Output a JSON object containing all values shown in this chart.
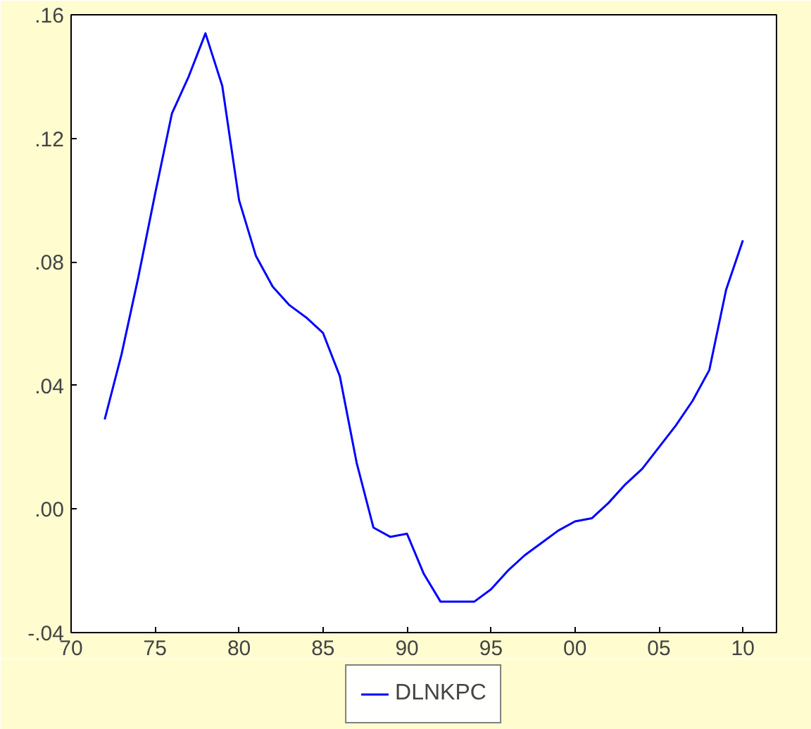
{
  "chart_data": {
    "type": "line",
    "x": [
      1972,
      1973,
      1974,
      1975,
      1976,
      1977,
      1978,
      1979,
      1980,
      1981,
      1982,
      1983,
      1984,
      1985,
      1986,
      1987,
      1988,
      1989,
      1990,
      1991,
      1992,
      1993,
      1994,
      1995,
      1996,
      1997,
      1998,
      1999,
      2000,
      2001,
      2002,
      2003,
      2004,
      2005,
      2006,
      2007,
      2008,
      2009,
      2010
    ],
    "series": [
      {
        "name": "DLNKPC",
        "color": "#0000ff",
        "values": [
          0.029,
          0.05,
          0.075,
          0.102,
          0.128,
          0.14,
          0.154,
          0.137,
          0.1,
          0.082,
          0.072,
          0.066,
          0.062,
          0.057,
          0.043,
          0.015,
          -0.006,
          -0.009,
          -0.008,
          -0.021,
          -0.03,
          -0.03,
          -0.03,
          -0.026,
          -0.02,
          -0.015,
          -0.011,
          -0.007,
          -0.004,
          -0.003,
          0.002,
          0.008,
          0.013,
          0.02,
          0.027,
          0.035,
          0.045,
          0.071,
          0.087
        ]
      }
    ],
    "xlim": [
      1970,
      2012
    ],
    "xticks": [
      {
        "value": 1970,
        "label": "70"
      },
      {
        "value": 1975,
        "label": "75"
      },
      {
        "value": 1980,
        "label": "80"
      },
      {
        "value": 1985,
        "label": "85"
      },
      {
        "value": 1990,
        "label": "90"
      },
      {
        "value": 1995,
        "label": "95"
      },
      {
        "value": 2000,
        "label": "00"
      },
      {
        "value": 2005,
        "label": "05"
      },
      {
        "value": 2010,
        "label": "10"
      }
    ],
    "ylim": [
      -0.04,
      0.16
    ],
    "yticks": [
      {
        "value": -0.04,
        "label": "-.04"
      },
      {
        "value": 0.0,
        "label": ".00"
      },
      {
        "value": 0.04,
        "label": ".04"
      },
      {
        "value": 0.08,
        "label": ".08"
      },
      {
        "value": 0.12,
        "label": ".12"
      },
      {
        "value": 0.16,
        "label": ".16"
      }
    ],
    "grid": false,
    "legend": "bottom",
    "line_style": "solid",
    "marker": "none"
  }
}
